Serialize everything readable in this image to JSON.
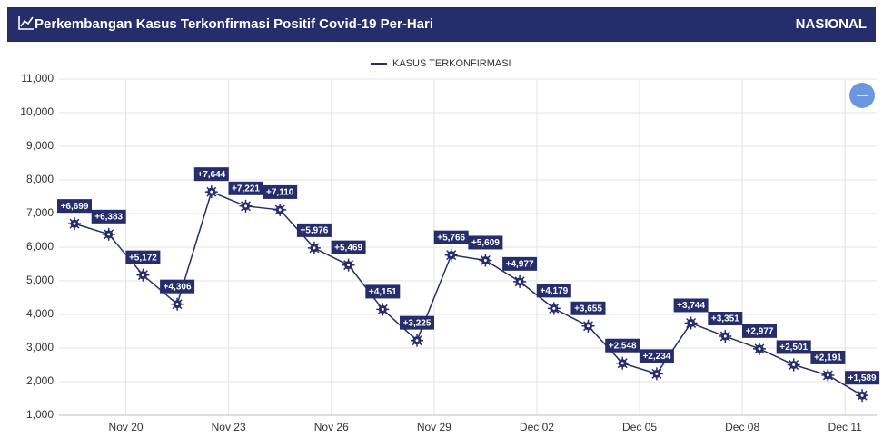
{
  "chart_data": {
    "type": "line",
    "title": "Perkembangan Kasus Terkonfirmasi Positif Covid-19 Per-Hari",
    "badge": "NASIONAL",
    "categories": [
      null,
      null,
      "Nov 20",
      null,
      null,
      "Nov 23",
      null,
      null,
      "Nov 26",
      null,
      null,
      "Nov 29",
      null,
      null,
      "Dec 02",
      null,
      null,
      "Dec 05",
      null,
      null,
      "Dec 08",
      null,
      null,
      "Dec 11"
    ],
    "series": [
      {
        "name": "KASUS TERKONFIRMASI",
        "color": "#262d6b",
        "values": [
          6699,
          6383,
          5172,
          4306,
          7644,
          7221,
          7110,
          5976,
          5469,
          4151,
          3225,
          5766,
          5609,
          4977,
          4179,
          3655,
          2548,
          2234,
          3744,
          3351,
          2977,
          2501,
          2191,
          1589
        ],
        "value_labels": [
          "+6,699",
          "+6,383",
          "+5,172",
          "+4,306",
          "+7,644",
          "+7,221",
          "+7,110",
          "+5,976",
          "+5,469",
          "+4,151",
          "+3,225",
          "+5,766",
          "+5,609",
          "+4,977",
          "+4,179",
          "+3,655",
          "+2,548",
          "+2,234",
          "+3,744",
          "+3,351",
          "+2,977",
          "+2,501",
          "+2,191",
          "+1,589"
        ]
      }
    ],
    "ylim": [
      1000,
      11000
    ],
    "yticks": [
      {
        "value": 1000,
        "label": "1,000"
      },
      {
        "value": 2000,
        "label": "2,000"
      },
      {
        "value": 3000,
        "label": "3,000"
      },
      {
        "value": 4000,
        "label": "4,000"
      },
      {
        "value": 5000,
        "label": "5,000"
      },
      {
        "value": 6000,
        "label": "6,000"
      },
      {
        "value": 7000,
        "label": "7,000"
      },
      {
        "value": 8000,
        "label": "8,000"
      },
      {
        "value": 9000,
        "label": "9,000"
      },
      {
        "value": 10000,
        "label": "10,000"
      },
      {
        "value": 11000,
        "label": "11,000"
      }
    ],
    "grid": true,
    "legend": "top"
  }
}
